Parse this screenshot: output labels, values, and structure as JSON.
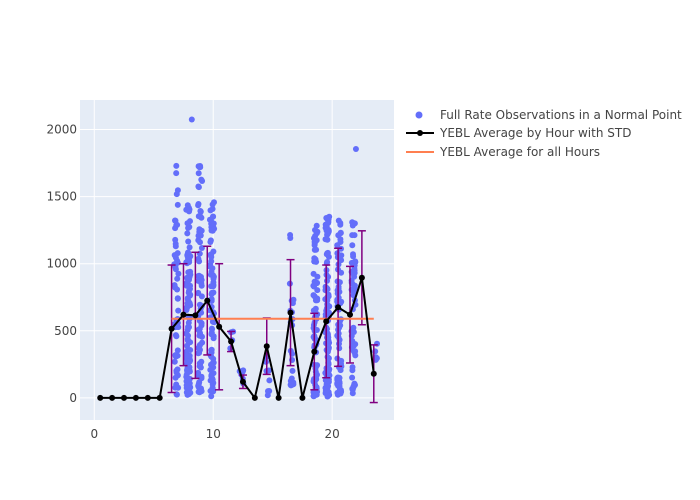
{
  "chart_data": {
    "type": "scatter",
    "title": "",
    "xlabel": "",
    "ylabel": "",
    "xlim": [
      -1.2,
      25.2
    ],
    "ylim": [
      -165,
      2220
    ],
    "x_ticks": [
      0,
      10,
      20
    ],
    "y_ticks": [
      0,
      500,
      1000,
      1500,
      2000
    ],
    "grid": true,
    "legend_position": "right",
    "colors": {
      "plot_bg": "#e5ecf6",
      "grid": "#ffffff",
      "scatter": "#636efa",
      "hourly_line": "#000000",
      "error_bar": "#800080",
      "overall_line": "#ff7f50"
    },
    "series": [
      {
        "name": "Full Rate Observations in a Normal Point",
        "type": "scatter",
        "clusters": [
          {
            "x": 6.9,
            "min": 20,
            "max": 1740,
            "count": 55
          },
          {
            "x": 7.9,
            "min": 20,
            "max": 1450,
            "count": 120
          },
          {
            "x": 8.9,
            "min": 40,
            "max": 1820,
            "count": 80
          },
          {
            "x": 9.9,
            "min": 10,
            "max": 1480,
            "count": 85
          },
          {
            "x": 11.6,
            "min": 350,
            "max": 500,
            "count": 4
          },
          {
            "x": 12.4,
            "min": 20,
            "max": 230,
            "count": 6
          },
          {
            "x": 14.6,
            "min": 20,
            "max": 690,
            "count": 8
          },
          {
            "x": 16.6,
            "min": 90,
            "max": 1400,
            "count": 22
          },
          {
            "x": 18.6,
            "min": 10,
            "max": 1290,
            "count": 85
          },
          {
            "x": 19.6,
            "min": 10,
            "max": 1410,
            "count": 120
          },
          {
            "x": 20.6,
            "min": 20,
            "max": 1350,
            "count": 80
          },
          {
            "x": 21.8,
            "min": 30,
            "max": 1310,
            "count": 60
          },
          {
            "x": 23.7,
            "min": 20,
            "max": 650,
            "count": 5
          }
        ],
        "extra_points": [
          [
            8.2,
            2075
          ],
          [
            22.0,
            1855
          ]
        ]
      },
      {
        "name": "YEBL Average by Hour with STD",
        "type": "line_errorbar",
        "x": [
          0.5,
          1.5,
          2.5,
          3.5,
          4.5,
          5.5,
          6.5,
          7.5,
          8.5,
          9.5,
          10.5,
          11.5,
          12.5,
          13.5,
          14.5,
          15.5,
          16.5,
          17.5,
          18.5,
          19.5,
          20.5,
          21.5,
          22.5,
          23.5
        ],
        "y": [
          0,
          0,
          0,
          0,
          0,
          0,
          515,
          620,
          615,
          725,
          530,
          420,
          120,
          0,
          385,
          0,
          635,
          0,
          345,
          570,
          675,
          620,
          895,
          180
        ],
        "std": [
          0,
          0,
          0,
          0,
          0,
          0,
          475,
          380,
          470,
          405,
          470,
          75,
          50,
          0,
          210,
          0,
          395,
          0,
          285,
          420,
          440,
          360,
          350,
          215
        ]
      },
      {
        "name": "YEBL Average for all Hours",
        "type": "hline",
        "y": 590,
        "x_range": [
          6.5,
          23.5
        ]
      }
    ]
  }
}
